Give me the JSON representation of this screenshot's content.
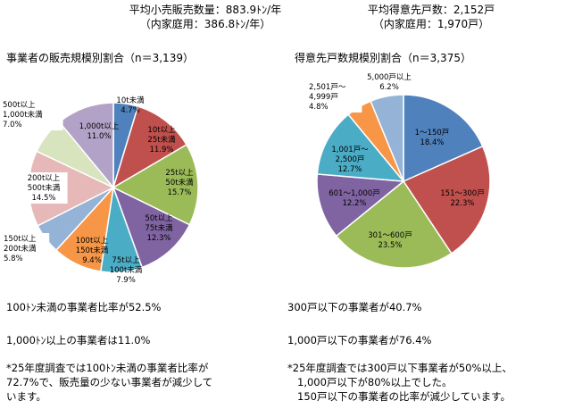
{
  "header": {
    "left_line1": "平均小売販売数量：883.9ﾄﾝ/年",
    "left_line2": "（内家庭用：386.8ﾄﾝ/年）",
    "right_line1": "平均得意先戸数：2,152戸",
    "right_line2": "（内家庭用：1,970戸）"
  },
  "chart_data": [
    {
      "type": "pie",
      "title": "事業者の販売規模別割合（n＝3,139）",
      "slices": [
        {
          "label_lines": [
            "10t未満"
          ],
          "value_text": "4.7%",
          "value": 4.7,
          "color": "#4F81BD"
        },
        {
          "label_lines": [
            "10t以上",
            "25t未満"
          ],
          "value_text": "11.9%",
          "value": 11.9,
          "color": "#C0504D"
        },
        {
          "label_lines": [
            "25t以上",
            "50t未満"
          ],
          "value_text": "15.7%",
          "value": 15.7,
          "color": "#9BBB59"
        },
        {
          "label_lines": [
            "50t以上",
            "75t未満"
          ],
          "value_text": "12.3%",
          "value": 12.3,
          "color": "#8064A2"
        },
        {
          "label_lines": [
            "75t以上",
            "100t未満"
          ],
          "value_text": "7.9%",
          "value": 7.9,
          "color": "#4BACC6"
        },
        {
          "label_lines": [
            "100t以上",
            "150t未満"
          ],
          "value_text": "9.4%",
          "value": 9.4,
          "color": "#F79646"
        },
        {
          "label_lines": [
            "150t以上",
            "200t未満"
          ],
          "value_text": "5.8%",
          "value": 5.8,
          "color": "#95B3D7"
        },
        {
          "label_lines": [
            "200t以上",
            "500t未満"
          ],
          "value_text": "14.5%",
          "value": 14.5,
          "color": "#E6B9B8"
        },
        {
          "label_lines": [
            "500t以上",
            "1,000t未満"
          ],
          "value_text": "7.0%",
          "value": 7.0,
          "color": "#D7E4BD"
        },
        {
          "label_lines": [
            "1,000t以上"
          ],
          "value_text": "11.0%",
          "value": 11.0,
          "color": "#B3A2C7"
        }
      ]
    },
    {
      "type": "pie",
      "title": "得意先戸数規模別割合（n＝3,375）",
      "slices": [
        {
          "label_lines": [
            "1～150戸"
          ],
          "value_text": "18.4%",
          "value": 18.4,
          "color": "#4F81BD"
        },
        {
          "label_lines": [
            "151～300戸"
          ],
          "value_text": "22.3%",
          "value": 22.3,
          "color": "#C0504D"
        },
        {
          "label_lines": [
            "301～600戸"
          ],
          "value_text": "23.5%",
          "value": 23.5,
          "color": "#9BBB59"
        },
        {
          "label_lines": [
            "601～1,000戸"
          ],
          "value_text": "12.2%",
          "value": 12.2,
          "color": "#8064A2"
        },
        {
          "label_lines": [
            "1,001戸～",
            "2,500戸"
          ],
          "value_text": "12.7%",
          "value": 12.7,
          "color": "#4BACC6"
        },
        {
          "label_lines": [
            "2,501戸～",
            "4,999戸"
          ],
          "value_text": "4.8%",
          "value": 4.8,
          "color": "#F79646"
        },
        {
          "label_lines": [
            "5,000戸以上"
          ],
          "value_text": "6.2%",
          "value": 6.2,
          "color": "#95B3D7"
        }
      ]
    }
  ],
  "notes": {
    "left": [
      "100ﾄﾝ未満の事業者比率が52.5%",
      "1,000ﾄﾝ以上の事業者は11.0%",
      "*25年度調査では100ﾄﾝ未満の事業者比率が",
      "72.7%で、販売量の少ない事業者が減少して",
      "います。"
    ],
    "right": [
      "300戸以下の事業者が40.7%",
      "1,000戸以下の事業者が76.4%",
      "*25年度調査では300戸以下事業者が50%以上、",
      "1,000戸以下が80%以上でした。",
      "150戸以下の事業者の比率が減少しています。"
    ]
  }
}
